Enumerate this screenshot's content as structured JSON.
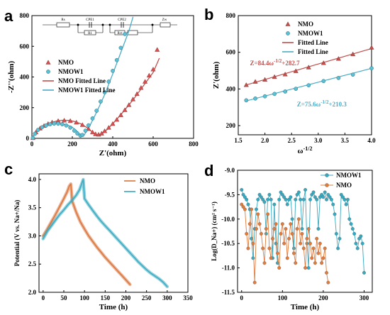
{
  "colors": {
    "nmo_red": "#c0504d",
    "nmo_fill": "#d94f4f",
    "nmow1_teal": "#4bacc6",
    "nmow1_fill": "#5cc0d4",
    "nmo_orange": "#e07b3c",
    "nmo_orange_line": "#d9733a",
    "nmow1_cyan": "#36a9c0"
  },
  "panels": {
    "a": {
      "letter": "a"
    },
    "b": {
      "letter": "b"
    },
    "c": {
      "letter": "c"
    },
    "d": {
      "letter": "d"
    }
  },
  "circuit": {
    "elements": [
      "Rs",
      "CPE1",
      "R1",
      "CPE2",
      "Rct",
      "Zw"
    ]
  },
  "chart_data": [
    {
      "id": "a",
      "type": "scatter",
      "xlabel": "Z'(ohm)",
      "ylabel": "-Z''(ohm)",
      "xlim": [
        0,
        800
      ],
      "ylim": [
        0,
        800
      ],
      "xticks": [
        0,
        200,
        400,
        600,
        800
      ],
      "yticks": [
        0,
        200,
        400,
        600,
        800
      ],
      "legend": {
        "placement": "upper-left",
        "entries": [
          "NMO",
          "NMOW1",
          "NMO Fitted Line",
          "NMOW1 Fitted Line"
        ]
      },
      "series": [
        {
          "name": "NMO",
          "style": "markers",
          "color": "nmo_fill",
          "x": [
            5,
            20,
            40,
            60,
            80,
            100,
            130,
            160,
            190,
            220,
            250,
            280,
            300,
            315,
            330,
            345,
            360,
            380,
            400,
            420,
            440,
            460,
            480,
            500,
            520,
            540,
            560,
            580,
            600,
            620
          ],
          "y": [
            3,
            40,
            65,
            82,
            95,
            105,
            114,
            117,
            114,
            104,
            88,
            62,
            40,
            28,
            25,
            32,
            48,
            70,
            95,
            122,
            152,
            185,
            218,
            255,
            290,
            330,
            370,
            410,
            450,
            578
          ]
        },
        {
          "name": "NMOW1",
          "style": "markers",
          "color": "nmow1_fill",
          "x": [
            5,
            15,
            30,
            50,
            70,
            90,
            110,
            130,
            150,
            170,
            190,
            210,
            225,
            240,
            250,
            265,
            280,
            300,
            320,
            340,
            360,
            380,
            400,
            420,
            440,
            460
          ],
          "y": [
            3,
            30,
            55,
            72,
            84,
            92,
            96,
            96,
            92,
            84,
            70,
            50,
            32,
            18,
            22,
            50,
            85,
            130,
            180,
            240,
            300,
            370,
            440,
            510,
            590,
            680
          ]
        },
        {
          "name": "NMO Fitted Line",
          "style": "line",
          "color": "nmo_red",
          "x": [
            0,
            30,
            60,
            90,
            120,
            150,
            180,
            210,
            240,
            270,
            300,
            320,
            340,
            360,
            400,
            450,
            500,
            550,
            600,
            630
          ],
          "y": [
            0,
            55,
            82,
            100,
            112,
            118,
            117,
            110,
            96,
            72,
            40,
            22,
            25,
            42,
            95,
            170,
            250,
            340,
            430,
            520
          ]
        },
        {
          "name": "NMOW1 Fitted Line",
          "style": "line",
          "color": "nmow1_teal",
          "x": [
            0,
            25,
            50,
            75,
            100,
            125,
            150,
            175,
            200,
            225,
            240,
            255,
            280,
            320,
            360,
            400,
            440,
            480,
            500
          ],
          "y": [
            0,
            48,
            70,
            85,
            94,
            97,
            95,
            87,
            72,
            45,
            20,
            15,
            65,
            170,
            285,
            420,
            560,
            700,
            790
          ]
        }
      ]
    },
    {
      "id": "b",
      "type": "scatter",
      "xlabel": "ω^-1/2",
      "ylabel": "Z'(ohm)",
      "xlim": [
        1.5,
        4.0
      ],
      "ylim": [
        150,
        800
      ],
      "xticks": [
        1.5,
        2.0,
        2.5,
        3.0,
        3.5,
        4.0
      ],
      "yticks": [
        200,
        400,
        600,
        800
      ],
      "legend": {
        "placement": "upper-left",
        "entries": [
          "NMO",
          "NMOW1",
          "Fitted Line",
          "Fitted Line"
        ]
      },
      "series": [
        {
          "name": "NMO",
          "style": "markers",
          "color": "nmo_red",
          "x": [
            1.65,
            1.82,
            2.0,
            2.18,
            2.38,
            2.58,
            2.82,
            3.1,
            3.38,
            3.65,
            4.0
          ],
          "y": [
            422,
            440,
            451,
            466,
            480,
            498,
            518,
            542,
            565,
            590,
            626
          ]
        },
        {
          "name": "NMOW1",
          "style": "markers",
          "color": "nmow1_fill",
          "x": [
            1.65,
            1.82,
            2.0,
            2.18,
            2.38,
            2.58,
            2.82,
            3.1,
            3.38,
            3.65,
            4.0
          ],
          "y": [
            338,
            348,
            360,
            373,
            386,
            401,
            420,
            443,
            460,
            478,
            513
          ]
        },
        {
          "name": "Fitted Line",
          "style": "line",
          "color": "nmo_red",
          "x": [
            1.65,
            4.0
          ],
          "y": [
            421.9,
            620.3
          ]
        },
        {
          "name": "Fitted Line",
          "style": "line",
          "color": "nmow1_teal",
          "x": [
            1.65,
            4.0
          ],
          "y": [
            335.0,
            512.7
          ]
        }
      ],
      "annotations": [
        {
          "text": "Z=84.4ω^-1/2+282.7",
          "color": "nmo_red",
          "x": 1.72,
          "y": 530
        },
        {
          "text": "Z=75.6ω^-1/2+210.3",
          "color": "nmow1_teal",
          "x": 2.6,
          "y": 305
        }
      ]
    },
    {
      "id": "c",
      "type": "line",
      "xlabel": "Time (h)",
      "ylabel": "Potential (V vs. Na+/Na)",
      "xlim": [
        -10,
        350
      ],
      "ylim": [
        2.0,
        4.1
      ],
      "xticks": [
        0,
        50,
        100,
        150,
        200,
        250,
        300,
        350
      ],
      "yticks": [
        2.0,
        2.5,
        3.0,
        3.5,
        4.0
      ],
      "legend": {
        "placement": "upper-right",
        "entries": [
          "NMO",
          "NMOW1"
        ]
      },
      "series": [
        {
          "name": "NMO",
          "color": "nmo_orange_line",
          "charge_x": [
            0,
            10,
            20,
            30,
            40,
            50,
            58,
            63,
            67
          ],
          "charge_y": [
            3.0,
            3.12,
            3.25,
            3.38,
            3.52,
            3.66,
            3.78,
            3.88,
            3.92
          ],
          "discharge_x": [
            67,
            70,
            80,
            90,
            100,
            110,
            120,
            130,
            140,
            150,
            160,
            170,
            180,
            190,
            200,
            210
          ],
          "discharge_y": [
            3.92,
            3.62,
            3.42,
            3.25,
            3.12,
            3.0,
            2.9,
            2.8,
            2.71,
            2.62,
            2.54,
            2.46,
            2.38,
            2.3,
            2.22,
            2.14
          ]
        },
        {
          "name": "NMOW1",
          "color": "nmow1_cyan",
          "charge_x": [
            0,
            10,
            20,
            30,
            40,
            50,
            60,
            70,
            80,
            88,
            93,
            97
          ],
          "charge_y": [
            2.95,
            3.08,
            3.18,
            3.28,
            3.38,
            3.46,
            3.55,
            3.63,
            3.72,
            3.82,
            3.92,
            4.0
          ],
          "discharge_x": [
            97,
            100,
            110,
            120,
            130,
            140,
            150,
            160,
            170,
            180,
            190,
            200,
            210,
            220,
            230,
            240,
            250,
            260,
            270,
            280,
            290,
            300
          ],
          "discharge_y": [
            4.0,
            3.66,
            3.55,
            3.45,
            3.35,
            3.26,
            3.18,
            3.1,
            3.02,
            2.94,
            2.86,
            2.78,
            2.7,
            2.62,
            2.54,
            2.47,
            2.4,
            2.34,
            2.29,
            2.24,
            2.18,
            2.1
          ]
        }
      ]
    },
    {
      "id": "d",
      "type": "line",
      "xlabel": "Time (h)",
      "ylabel": "Log(D_Na+) (cm² s⁻¹)",
      "xlim": [
        -10,
        320
      ],
      "ylim": [
        -11.5,
        -9.0
      ],
      "xticks": [
        0,
        100,
        200,
        300
      ],
      "yticks": [
        -11.5,
        -11.0,
        -10.5,
        -10.0,
        -9.5,
        -9.0
      ],
      "legend": {
        "placement": "upper-right",
        "entries": [
          "NMOW1",
          "NMO"
        ]
      },
      "series": [
        {
          "name": "NMOW1",
          "color": "nmow1_cyan",
          "x": [
            0,
            4,
            8,
            12,
            16,
            20,
            24,
            28,
            32,
            36,
            40,
            44,
            48,
            52,
            56,
            60,
            64,
            68,
            72,
            76,
            80,
            84,
            88,
            92,
            96,
            100,
            104,
            108,
            112,
            116,
            120,
            124,
            128,
            132,
            136,
            140,
            144,
            148,
            152,
            156,
            160,
            164,
            168,
            172,
            176,
            180,
            184,
            188,
            192,
            196,
            200,
            204,
            208,
            212,
            216,
            220,
            224,
            228,
            232,
            236,
            240,
            244,
            248,
            252,
            256,
            260,
            264,
            268,
            272,
            276,
            280,
            284,
            288,
            292,
            296,
            300
          ],
          "y": [
            -9.4,
            -9.5,
            -9.55,
            -9.6,
            -9.7,
            -9.8,
            -10.4,
            -10.8,
            -10.2,
            -9.8,
            -9.6,
            -9.5,
            -9.55,
            -9.6,
            -9.65,
            -10.3,
            -9.6,
            -9.5,
            -9.6,
            -10.8,
            -9.7,
            -10.5,
            -10.9,
            -9.6,
            -9.45,
            -9.5,
            -9.55,
            -9.6,
            -9.7,
            -9.6,
            -9.55,
            -10.0,
            -10.6,
            -9.6,
            -9.5,
            -9.45,
            -9.6,
            -10.2,
            -9.6,
            -9.4,
            -10.5,
            -11.0,
            -9.6,
            -9.5,
            -9.45,
            -9.55,
            -9.6,
            -10.2,
            -9.55,
            -9.5,
            -9.55,
            -9.45,
            -9.6,
            -9.5,
            -9.55,
            -9.6,
            -9.7,
            -9.9,
            -10.3,
            -10.6,
            -10.4,
            -9.5,
            -9.55,
            -9.6,
            -9.7,
            -9.6,
            -10.0,
            -10.1,
            -10.2,
            -10.3,
            -10.5,
            -10.6,
            -10.4,
            -10.35,
            -10.5,
            -11.1
          ]
        },
        {
          "name": "NMO",
          "color": "nmo_orange",
          "x": [
            0,
            4,
            8,
            12,
            16,
            20,
            24,
            28,
            32,
            36,
            40,
            44,
            48,
            52,
            56,
            60,
            64,
            68,
            72,
            76,
            80,
            84,
            88,
            92,
            96,
            100,
            104,
            108,
            112,
            116,
            120,
            124,
            128,
            132,
            136,
            140,
            144,
            148,
            152,
            156,
            160,
            164,
            168,
            172,
            176,
            180,
            184,
            188,
            192,
            196,
            200,
            204,
            208,
            212
          ],
          "y": [
            -9.7,
            -9.75,
            -9.8,
            -10.3,
            -10.6,
            -10.1,
            -9.8,
            -10.5,
            -11.3,
            -10.2,
            -9.9,
            -10.1,
            -10.3,
            -10.6,
            -10.9,
            -10.2,
            -9.9,
            -10.6,
            -10.8,
            -10.4,
            -10.2,
            -10.1,
            -10.7,
            -11.0,
            -10.3,
            -10.1,
            -10.5,
            -10.2,
            -10.8,
            -10.4,
            -10.1,
            -10.3,
            -10.7,
            -10.9,
            -10.2,
            -10.0,
            -10.5,
            -10.3,
            -10.6,
            -11.0,
            -10.4,
            -10.2,
            -10.5,
            -10.8,
            -10.6,
            -10.9,
            -10.4,
            -10.7,
            -10.5,
            -10.9,
            -10.8,
            -10.6,
            -11.1,
            -11.3
          ]
        }
      ]
    }
  ]
}
